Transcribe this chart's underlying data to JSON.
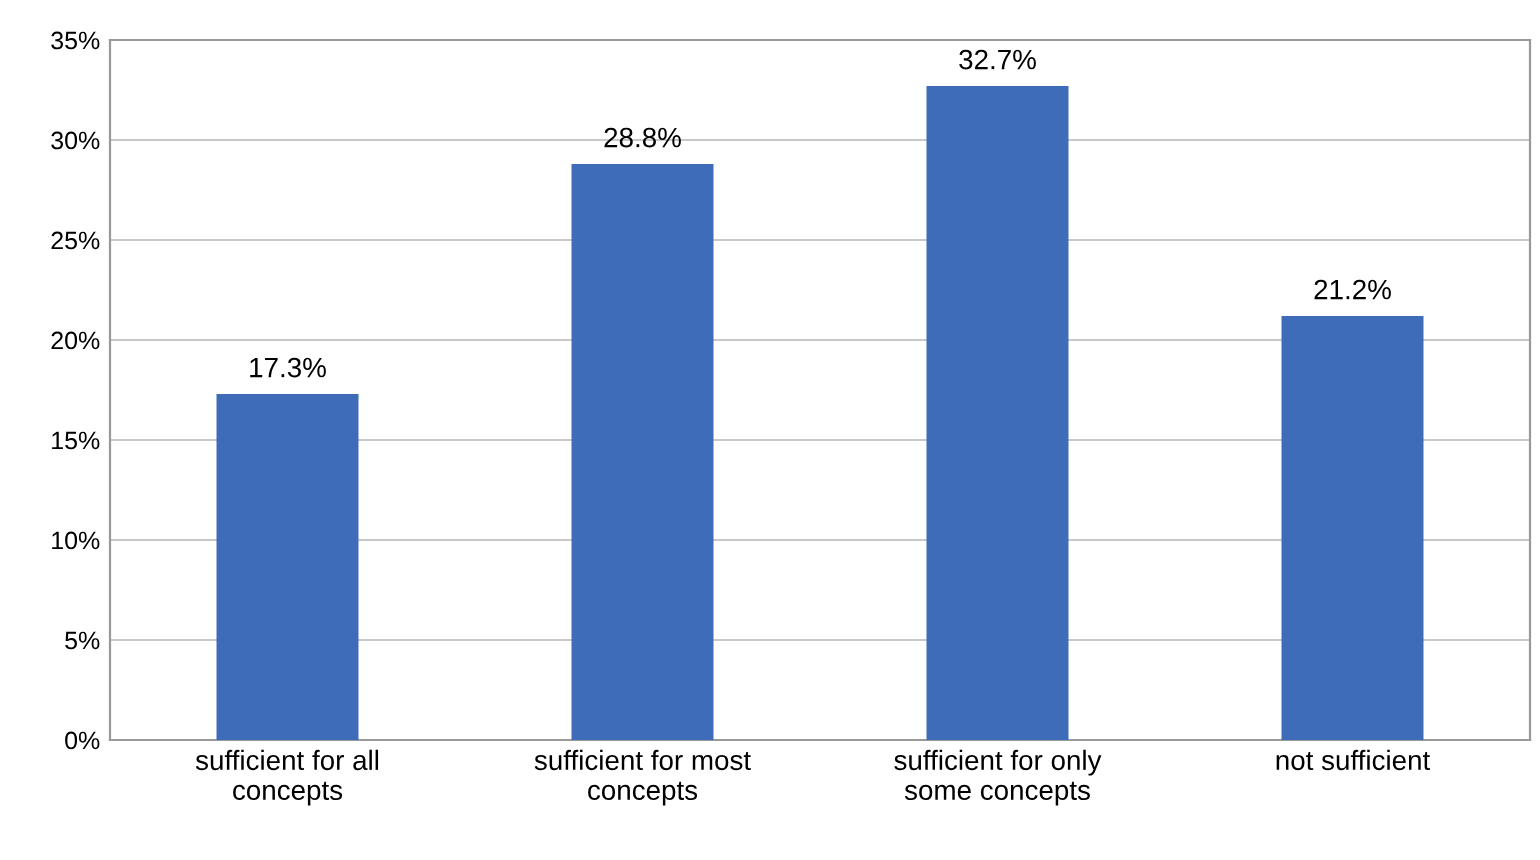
{
  "chart_data": {
    "type": "bar",
    "categories": [
      "sufficient for all\nconcepts",
      "sufficient for most\nconcepts",
      "sufficient for only\nsome concepts",
      "not sufficient"
    ],
    "values": [
      17.3,
      28.8,
      32.7,
      21.2
    ],
    "value_labels": [
      "17.3%",
      "28.8%",
      "32.7%",
      "21.2%"
    ],
    "color": "#3f6cb9",
    "ylim": [
      0,
      35
    ],
    "yticks": [
      {
        "value": 0,
        "label": "0%"
      },
      {
        "value": 5,
        "label": "5%"
      },
      {
        "value": 10,
        "label": "10%"
      },
      {
        "value": 15,
        "label": "15%"
      },
      {
        "value": 20,
        "label": "20%"
      },
      {
        "value": 25,
        "label": "25%"
      },
      {
        "value": 30,
        "label": "30%"
      },
      {
        "value": 35,
        "label": "35%"
      }
    ],
    "grid": "y"
  }
}
